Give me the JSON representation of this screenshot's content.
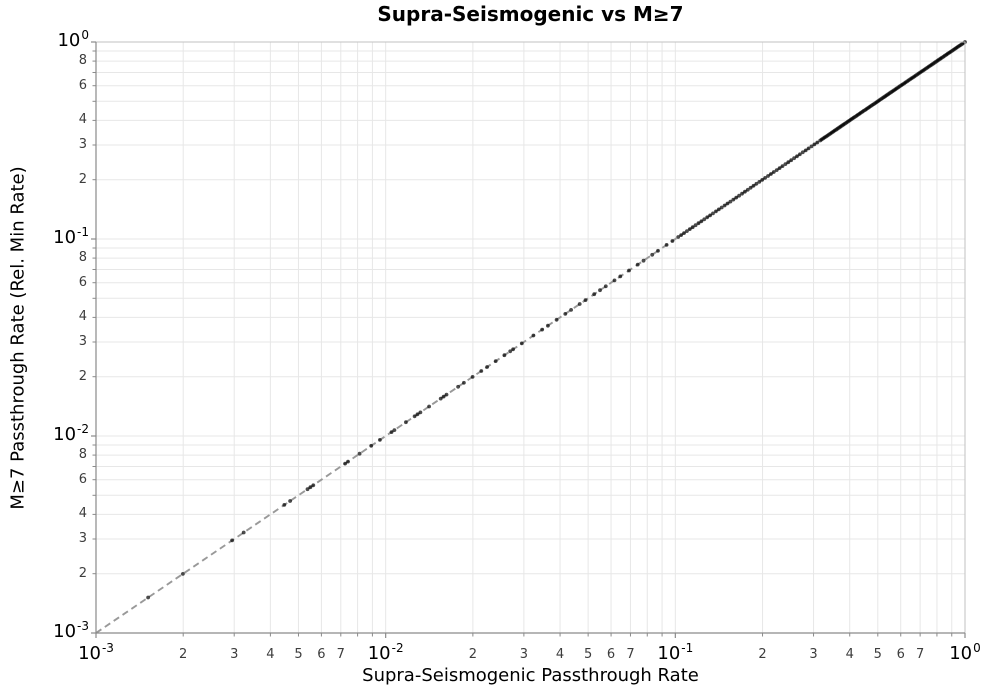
{
  "title": "Supra-Seismogenic vs M≥7",
  "x_axis": {
    "label": "Supra-Seismogenic Passthrough Rate",
    "scale": "log",
    "decades": [
      -3,
      -2,
      -1
    ],
    "major_ticks": [
      {
        "base": "10",
        "exp": "-3",
        "e": -3
      },
      {
        "base": "10",
        "exp": "-2",
        "e": -2
      },
      {
        "base": "10",
        "exp": "-1",
        "e": -1
      },
      {
        "base": "10",
        "exp": "0",
        "e": 0
      }
    ],
    "minor_tick_labels": [
      "2",
      "3",
      "4",
      "5",
      "6",
      "7"
    ]
  },
  "y_axis": {
    "label": "M≥7 Passthrough Rate (Rel. Min Rate)",
    "scale": "log",
    "decades": [
      -3,
      -2,
      -1
    ],
    "major_ticks": [
      {
        "base": "10",
        "exp": "0",
        "e": 0
      },
      {
        "base": "10",
        "exp": "-1",
        "e": -1
      },
      {
        "base": "10",
        "exp": "-2",
        "e": -2
      },
      {
        "base": "10",
        "exp": "-3",
        "e": -3
      }
    ],
    "minor_tick_labels": [
      "2",
      "3",
      "4",
      "6",
      "8"
    ]
  },
  "style": {
    "point_color": "#000000",
    "point_opacity": 0.7,
    "point_radius": 1.9,
    "dash_color": "#999999",
    "grid_color": "#e7e7e7",
    "spine_color": "#8a8a8a",
    "spine_light": "#c2c2c2"
  },
  "chart_data": {
    "type": "scatter",
    "title": "Supra-Seismogenic vs M≥7",
    "xlabel": "Supra-Seismogenic Passthrough Rate",
    "ylabel": "M≥7 Passthrough Rate (Rel. Min Rate)",
    "xscale": "log",
    "yscale": "log",
    "xlim": [
      0.001,
      1
    ],
    "ylim": [
      0.001,
      1
    ],
    "grid": "both",
    "legend": "none",
    "reference_line": {
      "type": "identity",
      "equation": "y = x",
      "style": "dashed"
    },
    "note": "All scatter points lie on the identity line y = x; point density increases toward (1,1).",
    "y_equals_x": true,
    "points_log10x": [
      -2.82,
      -2.7,
      -2.53,
      -2.49,
      -2.35,
      -2.33,
      -2.27,
      -2.26,
      -2.25,
      -2.14,
      -2.13,
      -2.09,
      -2.05,
      -2.02,
      -1.98,
      -1.97,
      -1.93,
      -1.9,
      -1.89,
      -1.88,
      -1.85,
      -1.81,
      -1.8,
      -1.79,
      -1.75,
      -1.73,
      -1.7,
      -1.67,
      -1.65,
      -1.62,
      -1.59,
      -1.57,
      -1.56,
      -1.53,
      -1.49,
      -1.46,
      -1.44,
      -1.41,
      -1.38,
      -1.36,
      -1.33,
      -1.31,
      -1.28,
      -1.26,
      -1.24,
      -1.21,
      -1.19,
      -1.16,
      -1.13,
      -1.11,
      -1.08,
      -1.06,
      -1.03,
      -1.01,
      -0.99,
      -0.98,
      -0.97,
      -0.96,
      -0.95,
      -0.94,
      -0.93,
      -0.92,
      -0.91,
      -0.9,
      -0.89,
      -0.88,
      -0.87,
      -0.86,
      -0.85,
      -0.84,
      -0.83,
      -0.82,
      -0.81,
      -0.8,
      -0.79,
      -0.78,
      -0.77,
      -0.76,
      -0.75,
      -0.74,
      -0.73,
      -0.72,
      -0.71,
      -0.7,
      -0.69,
      -0.68,
      -0.67,
      -0.66,
      -0.65,
      -0.64,
      -0.63,
      -0.62,
      -0.61,
      -0.6,
      -0.59,
      -0.58,
      -0.57,
      -0.56,
      -0.55,
      -0.54,
      -0.53,
      -0.52,
      -0.51,
      -0.5,
      -0.49,
      -0.48,
      -0.47,
      -0.46,
      -0.45,
      -0.44,
      -0.43,
      -0.42,
      -0.41,
      -0.4,
      -0.39,
      -0.38,
      -0.37,
      -0.36,
      -0.35,
      -0.34,
      -0.33,
      -0.32,
      -0.31,
      -0.3,
      -0.29,
      -0.28,
      -0.27,
      -0.26,
      -0.25,
      -0.24,
      -0.23,
      -0.22,
      -0.21,
      -0.2,
      -0.19,
      -0.18,
      -0.17,
      -0.16,
      -0.15,
      -0.14,
      -0.13,
      -0.12,
      -0.11,
      -0.1,
      -0.09,
      -0.08,
      -0.07,
      -0.06,
      -0.05,
      -0.04,
      -0.03,
      -0.02,
      -0.01,
      0.0,
      -0.495,
      -0.485,
      -0.475,
      -0.465,
      -0.455,
      -0.445,
      -0.435,
      -0.425,
      -0.415,
      -0.405,
      -0.395,
      -0.385,
      -0.375,
      -0.365,
      -0.355,
      -0.345,
      -0.335,
      -0.325,
      -0.315,
      -0.305,
      -0.295,
      -0.285,
      -0.275,
      -0.265,
      -0.255,
      -0.245,
      -0.235,
      -0.225,
      -0.215,
      -0.205,
      -0.195,
      -0.185,
      -0.175,
      -0.165,
      -0.155,
      -0.145,
      -0.135,
      -0.125,
      -0.115,
      -0.105,
      -0.095,
      -0.085,
      -0.075,
      -0.065,
      -0.055,
      -0.045,
      -0.035,
      -0.025,
      -0.015,
      -0.005
    ]
  }
}
